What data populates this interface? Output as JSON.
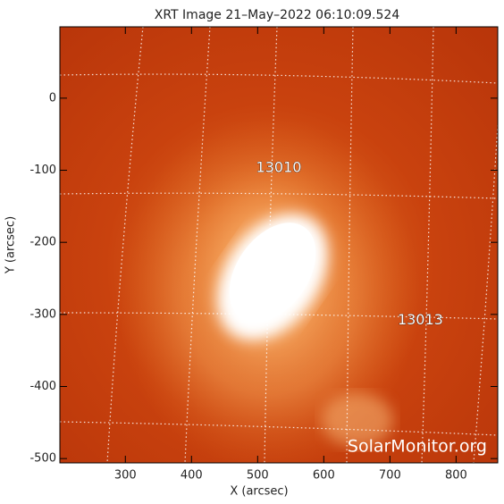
{
  "chart_data": {
    "type": "image",
    "title": "XRT Image 21–May–2022 06:10:09.524",
    "x_label": "X (arcsec)",
    "y_label": "Y (arcsec)",
    "xlim": [
      201,
      863
    ],
    "ylim": [
      -506,
      99
    ],
    "xticks": [
      300,
      400,
      500,
      600,
      700,
      800
    ],
    "yticks": [
      0,
      -100,
      -200,
      -300,
      -400,
      -500
    ],
    "annotations": [
      {
        "text": "13010",
        "x": 532,
        "y": -97
      },
      {
        "text": "13013",
        "x": 746,
        "y": -308
      }
    ],
    "watermark": "SolarMonitor.org"
  }
}
